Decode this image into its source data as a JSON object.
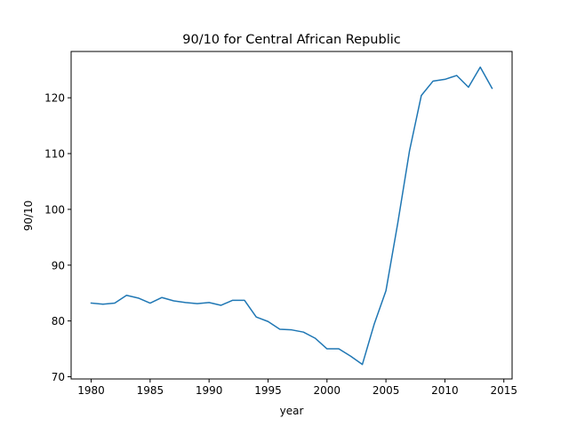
{
  "chart_data": {
    "type": "line",
    "title": "90/10 for Central African Republic",
    "xlabel": "year",
    "ylabel": "90/10",
    "xlim": [
      1978.3,
      2015.7
    ],
    "ylim": [
      69.6,
      128.3
    ],
    "xticks": [
      1980,
      1985,
      1990,
      1995,
      2000,
      2005,
      2010,
      2015
    ],
    "yticks": [
      70,
      80,
      90,
      100,
      110,
      120
    ],
    "grid": false,
    "legend": "none",
    "colors": {
      "line": "#1f77b4",
      "axes": "#000000"
    },
    "series": [
      {
        "x": [
          1980,
          1981,
          1982,
          1983,
          1984,
          1985,
          1986,
          1987,
          1988,
          1989,
          1990,
          1991,
          1992,
          1993,
          1994,
          1995,
          1996,
          1997,
          1998,
          1999,
          2000,
          2001,
          2002,
          2003,
          2004,
          2005,
          2006,
          2007,
          2008,
          2009,
          2010,
          2011,
          2012,
          2013,
          2014
        ],
        "values": [
          83.2,
          83.0,
          83.2,
          84.6,
          84.1,
          83.2,
          84.2,
          83.6,
          83.3,
          83.1,
          83.3,
          82.8,
          83.7,
          83.7,
          80.7,
          79.9,
          78.5,
          78.4,
          78.0,
          76.9,
          75.0,
          75.0,
          73.7,
          72.2,
          79.4,
          85.4,
          97.5,
          110.5,
          120.4,
          123.0,
          123.3,
          124.0,
          121.9,
          125.5,
          121.7
        ]
      }
    ]
  }
}
